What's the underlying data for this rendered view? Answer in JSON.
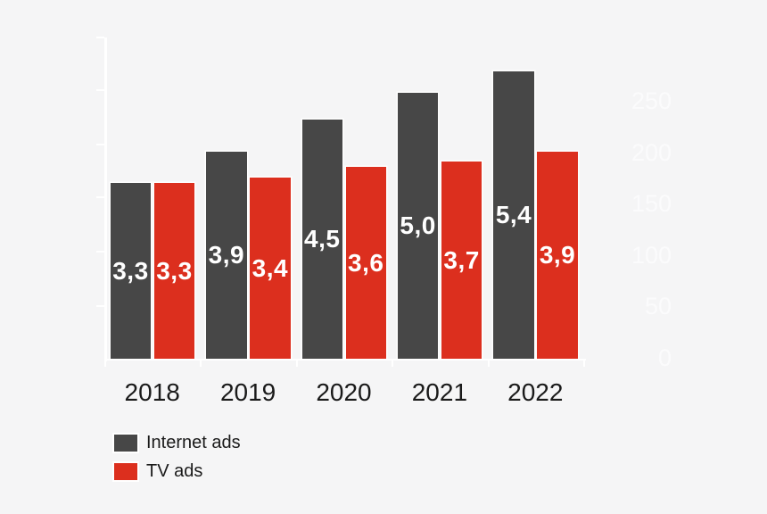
{
  "chart_data": {
    "type": "bar",
    "title": "",
    "categories": [
      "2018",
      "2019",
      "2020",
      "2021",
      "2022"
    ],
    "series": [
      {
        "name": "Internet ads",
        "color": "#474747",
        "values": [
          3.3,
          3.9,
          4.5,
          5.0,
          5.4
        ],
        "value_labels": [
          "3,3",
          "3,9",
          "4,5",
          "5,0",
          "5,4"
        ]
      },
      {
        "name": "TV ads",
        "color": "#DC2F1E",
        "values": [
          3.3,
          3.4,
          3.6,
          3.7,
          3.9
        ],
        "value_labels": [
          "3,3",
          "3,4",
          "3,6",
          "3,7",
          "3,9"
        ]
      }
    ],
    "value_label_style": "white bold, decimal comma, centered inside bar",
    "y_axis_right": {
      "labels": [
        "250",
        "200",
        "150",
        "100",
        "50",
        "0"
      ],
      "values": [
        250,
        200,
        150,
        100,
        50,
        0
      ],
      "range": [
        0,
        250
      ],
      "text_color": "#FBFBFC"
    },
    "grid": false,
    "axis_color": "#FFFFFF",
    "background_color": "#F5F5F6",
    "category_label_color": "#1A1A1A",
    "legend": {
      "position": "bottom-left",
      "items": [
        {
          "label": "Internet ads",
          "color": "#474747"
        },
        {
          "label": "TV ads",
          "color": "#DC2F1E"
        }
      ]
    }
  }
}
